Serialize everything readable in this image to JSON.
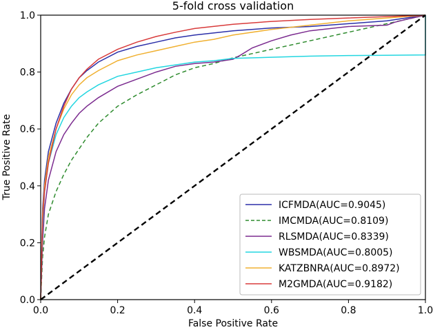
{
  "chart_data": {
    "type": "line",
    "title": "5-fold cross validation",
    "xlabel": "False Positive Rate",
    "ylabel": "True Positive Rate",
    "xlim": [
      0,
      1
    ],
    "ylim": [
      0,
      1
    ],
    "xticks": [
      "0.0",
      "0.2",
      "0.4",
      "0.6",
      "0.8",
      "1.0"
    ],
    "yticks": [
      "0.0",
      "0.2",
      "0.4",
      "0.6",
      "0.8",
      "1.0"
    ],
    "grid": false,
    "legend_position": "bottom-right",
    "series": [
      {
        "name": "ICFMDA(AUC=0.9045)",
        "color": "#2b2fa8",
        "dash": "solid",
        "points": [
          [
            0,
            0
          ],
          [
            0.005,
            0.32
          ],
          [
            0.01,
            0.42
          ],
          [
            0.02,
            0.52
          ],
          [
            0.04,
            0.62
          ],
          [
            0.06,
            0.69
          ],
          [
            0.08,
            0.74
          ],
          [
            0.1,
            0.78
          ],
          [
            0.12,
            0.805
          ],
          [
            0.15,
            0.835
          ],
          [
            0.2,
            0.87
          ],
          [
            0.25,
            0.89
          ],
          [
            0.3,
            0.905
          ],
          [
            0.35,
            0.92
          ],
          [
            0.4,
            0.93
          ],
          [
            0.5,
            0.945
          ],
          [
            0.6,
            0.955
          ],
          [
            0.7,
            0.96
          ],
          [
            0.8,
            0.97
          ],
          [
            0.9,
            0.98
          ],
          [
            0.95,
            0.99
          ],
          [
            1,
            1
          ]
        ]
      },
      {
        "name": "IMCMDA(AUC=0.8109)",
        "color": "#2e8b2e",
        "dash": "dashed",
        "points": [
          [
            0,
            0
          ],
          [
            0.005,
            0.15
          ],
          [
            0.01,
            0.22
          ],
          [
            0.02,
            0.3
          ],
          [
            0.04,
            0.38
          ],
          [
            0.06,
            0.44
          ],
          [
            0.08,
            0.49
          ],
          [
            0.1,
            0.53
          ],
          [
            0.12,
            0.57
          ],
          [
            0.15,
            0.62
          ],
          [
            0.2,
            0.68
          ],
          [
            0.25,
            0.72
          ],
          [
            0.3,
            0.755
          ],
          [
            0.35,
            0.79
          ],
          [
            0.4,
            0.815
          ],
          [
            0.45,
            0.83
          ],
          [
            0.5,
            0.85
          ],
          [
            0.55,
            0.865
          ],
          [
            0.6,
            0.88
          ],
          [
            0.7,
            0.91
          ],
          [
            0.8,
            0.94
          ],
          [
            0.9,
            0.97
          ],
          [
            0.95,
            0.985
          ],
          [
            1,
            1
          ]
        ]
      },
      {
        "name": "RLSMDA(AUC=0.8339)",
        "color": "#7b2b8f",
        "dash": "solid",
        "points": [
          [
            0,
            0
          ],
          [
            0.005,
            0.2
          ],
          [
            0.01,
            0.32
          ],
          [
            0.02,
            0.42
          ],
          [
            0.04,
            0.52
          ],
          [
            0.06,
            0.58
          ],
          [
            0.08,
            0.62
          ],
          [
            0.1,
            0.655
          ],
          [
            0.12,
            0.68
          ],
          [
            0.15,
            0.71
          ],
          [
            0.2,
            0.75
          ],
          [
            0.25,
            0.775
          ],
          [
            0.3,
            0.8
          ],
          [
            0.35,
            0.82
          ],
          [
            0.4,
            0.83
          ],
          [
            0.45,
            0.835
          ],
          [
            0.5,
            0.845
          ],
          [
            0.52,
            0.86
          ],
          [
            0.55,
            0.885
          ],
          [
            0.6,
            0.91
          ],
          [
            0.65,
            0.93
          ],
          [
            0.7,
            0.945
          ],
          [
            0.8,
            0.96
          ],
          [
            0.9,
            0.965
          ],
          [
            0.92,
            0.975
          ],
          [
            0.95,
            0.985
          ],
          [
            1,
            1
          ]
        ]
      },
      {
        "name": "WBSMDA(AUC=0.8005)",
        "color": "#22d6e0",
        "dash": "solid",
        "points": [
          [
            0,
            0
          ],
          [
            0.005,
            0.25
          ],
          [
            0.01,
            0.38
          ],
          [
            0.02,
            0.48
          ],
          [
            0.04,
            0.58
          ],
          [
            0.06,
            0.64
          ],
          [
            0.08,
            0.68
          ],
          [
            0.1,
            0.71
          ],
          [
            0.12,
            0.73
          ],
          [
            0.15,
            0.755
          ],
          [
            0.2,
            0.785
          ],
          [
            0.25,
            0.8
          ],
          [
            0.3,
            0.815
          ],
          [
            0.35,
            0.825
          ],
          [
            0.4,
            0.835
          ],
          [
            0.45,
            0.84
          ],
          [
            0.5,
            0.848
          ],
          [
            0.6,
            0.852
          ],
          [
            0.7,
            0.856
          ],
          [
            0.8,
            0.858
          ],
          [
            0.9,
            0.859
          ],
          [
            1,
            0.86
          ],
          [
            1,
            1
          ]
        ]
      },
      {
        "name": "KATZBNRA(AUC=0.8972)",
        "color": "#f0b030",
        "dash": "solid",
        "points": [
          [
            0,
            0
          ],
          [
            0.005,
            0.3
          ],
          [
            0.01,
            0.4
          ],
          [
            0.02,
            0.5
          ],
          [
            0.04,
            0.6
          ],
          [
            0.06,
            0.67
          ],
          [
            0.08,
            0.72
          ],
          [
            0.1,
            0.755
          ],
          [
            0.12,
            0.78
          ],
          [
            0.15,
            0.805
          ],
          [
            0.2,
            0.84
          ],
          [
            0.25,
            0.86
          ],
          [
            0.3,
            0.875
          ],
          [
            0.35,
            0.89
          ],
          [
            0.4,
            0.905
          ],
          [
            0.45,
            0.915
          ],
          [
            0.5,
            0.93
          ],
          [
            0.6,
            0.95
          ],
          [
            0.7,
            0.965
          ],
          [
            0.8,
            0.98
          ],
          [
            0.9,
            0.99
          ],
          [
            1,
            1
          ]
        ]
      },
      {
        "name": "M2GMDA(AUC=0.9182)",
        "color": "#d83a3a",
        "dash": "solid",
        "points": [
          [
            0,
            0
          ],
          [
            0.005,
            0.28
          ],
          [
            0.01,
            0.38
          ],
          [
            0.02,
            0.48
          ],
          [
            0.04,
            0.6
          ],
          [
            0.06,
            0.68
          ],
          [
            0.08,
            0.74
          ],
          [
            0.1,
            0.78
          ],
          [
            0.12,
            0.81
          ],
          [
            0.15,
            0.845
          ],
          [
            0.2,
            0.88
          ],
          [
            0.25,
            0.905
          ],
          [
            0.3,
            0.925
          ],
          [
            0.35,
            0.94
          ],
          [
            0.4,
            0.953
          ],
          [
            0.5,
            0.968
          ],
          [
            0.6,
            0.978
          ],
          [
            0.7,
            0.985
          ],
          [
            0.8,
            0.99
          ],
          [
            0.9,
            0.995
          ],
          [
            1,
            1
          ]
        ]
      }
    ],
    "reference_line": {
      "color": "#000000",
      "dash": "dashed",
      "points": [
        [
          0,
          0
        ],
        [
          1,
          1
        ]
      ]
    }
  }
}
